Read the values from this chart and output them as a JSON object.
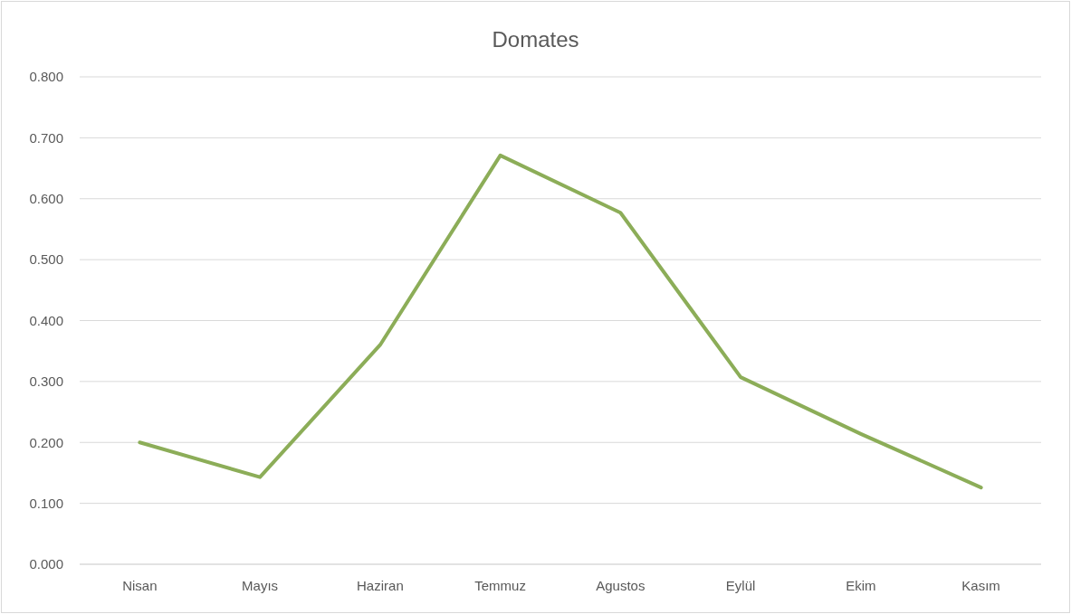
{
  "chart_data": {
    "type": "line",
    "title": "Domates",
    "categories": [
      "Nisan",
      "Mayıs",
      "Haziran",
      "Temmuz",
      "Agustos",
      "Eylül",
      "Ekim",
      "Kasım"
    ],
    "series": [
      {
        "color": "#8cad58",
        "values": [
          0.2,
          0.143,
          0.36,
          0.671,
          0.577,
          0.307,
          0.214,
          0.126
        ]
      }
    ],
    "ylim": [
      0,
      0.8
    ],
    "yticks": [
      {
        "value": 0,
        "label": "0.000"
      },
      {
        "value": 0.1,
        "label": "0.100"
      },
      {
        "value": 0.2,
        "label": "0.200"
      },
      {
        "value": 0.3,
        "label": "0.300"
      },
      {
        "value": 0.4,
        "label": "0.400"
      },
      {
        "value": 0.5,
        "label": "0.500"
      },
      {
        "value": 0.6,
        "label": "0.600"
      },
      {
        "value": 0.7,
        "label": "0.700"
      },
      {
        "value": 0.8,
        "label": "0.800"
      }
    ],
    "grid": "y",
    "marker": "none",
    "line_style": "solid"
  }
}
